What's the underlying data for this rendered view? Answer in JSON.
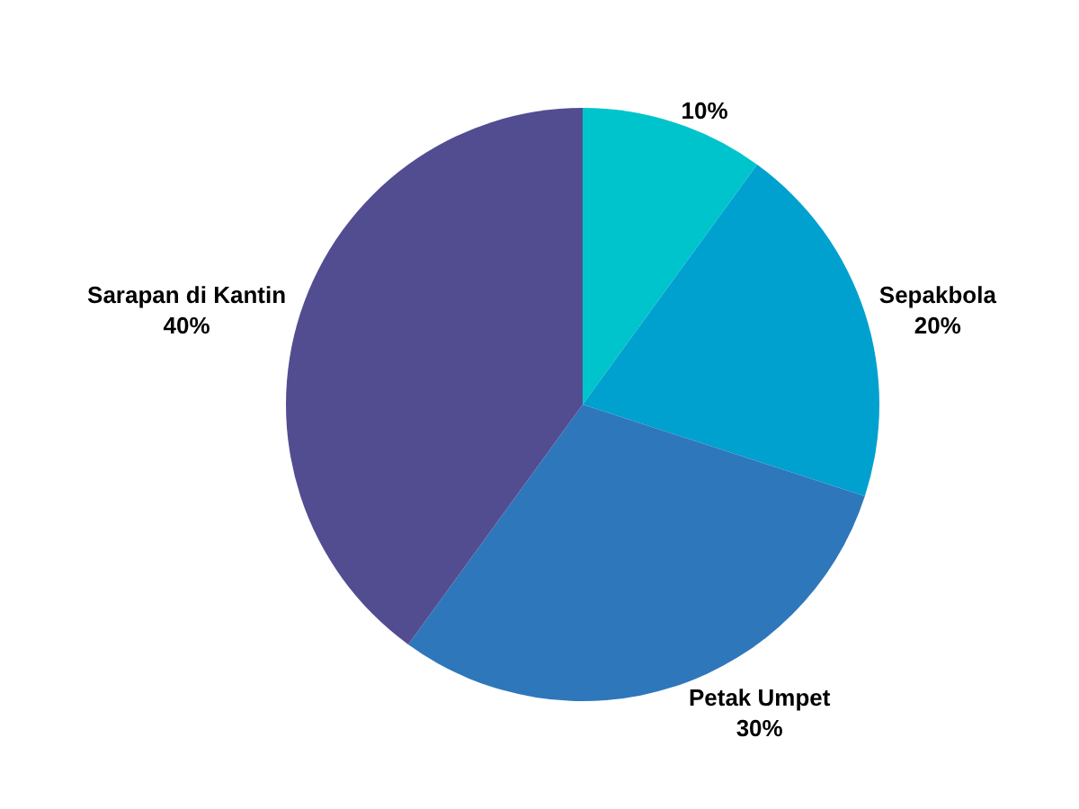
{
  "chart_data": {
    "type": "pie",
    "categories": [
      null,
      "Sepakbola",
      "Petak Umpet",
      "Sarapan di Kantin"
    ],
    "values": [
      10,
      20,
      30,
      40
    ],
    "colors": [
      "#00c4cc",
      "#00a1cf",
      "#2e77bb",
      "#524d91"
    ],
    "value_labels": [
      "10%",
      "20%",
      "30%",
      "40%"
    ]
  }
}
